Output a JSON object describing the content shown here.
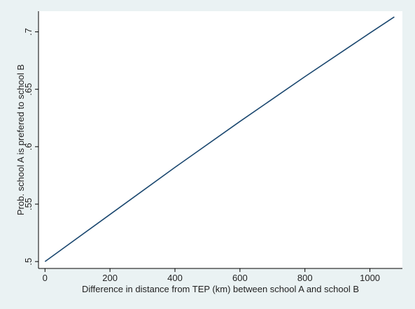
{
  "chart_data": {
    "type": "line",
    "title": "",
    "xlabel": "Difference in distance from TEP (km) between school A and school B",
    "ylabel": "Prob. school A is prefered to school B",
    "xlim": [
      -20,
      1100
    ],
    "ylim": [
      0.494,
      0.718
    ],
    "xticks": [
      0,
      200,
      400,
      600,
      800,
      1000
    ],
    "xtick_labels": [
      "0",
      "200",
      "400",
      "600",
      "800",
      "1000"
    ],
    "yticks": [
      0.5,
      0.55,
      0.6,
      0.65,
      0.7
    ],
    "ytick_labels": [
      ".5",
      ".55",
      ".6",
      ".65",
      ".7"
    ],
    "grid": false,
    "series": [
      {
        "x": [
          0,
          200,
          400,
          600,
          800,
          1000,
          1075
        ],
        "y": [
          0.5,
          0.541,
          0.582,
          0.622,
          0.661,
          0.699,
          0.713
        ]
      }
    ],
    "colors": {
      "background": "#eaf2f3",
      "plot_background": "#ffffff",
      "line": "#1a476f",
      "axis": "#000000"
    }
  }
}
